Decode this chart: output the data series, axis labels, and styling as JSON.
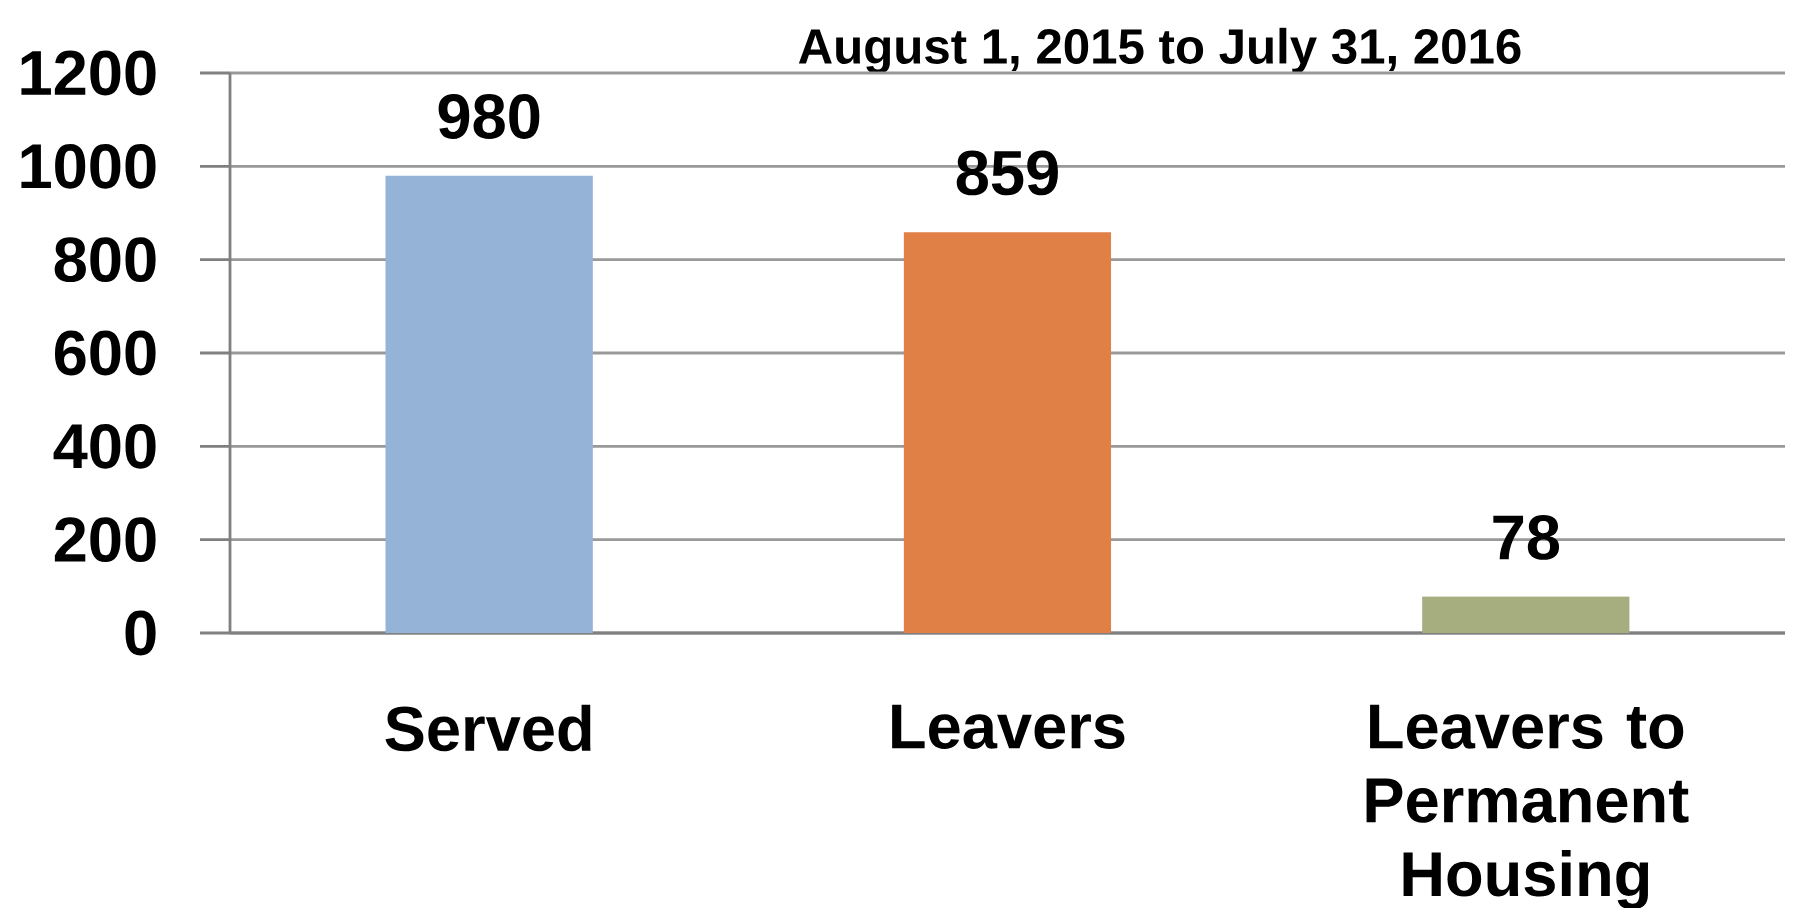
{
  "chart_data": {
    "type": "bar",
    "title": "August 1, 2015 to July 31, 2016",
    "categories": [
      "Served",
      "Leavers",
      "Leavers to Permanent Housing"
    ],
    "values": [
      980,
      859,
      78
    ],
    "colors": [
      "#95b3d7",
      "#e07f46",
      "#a6ad7f"
    ],
    "ylim": [
      0,
      1200
    ],
    "yticks": [
      0,
      200,
      400,
      600,
      800,
      1000,
      1200
    ],
    "grid": "y",
    "data_labels": true
  }
}
